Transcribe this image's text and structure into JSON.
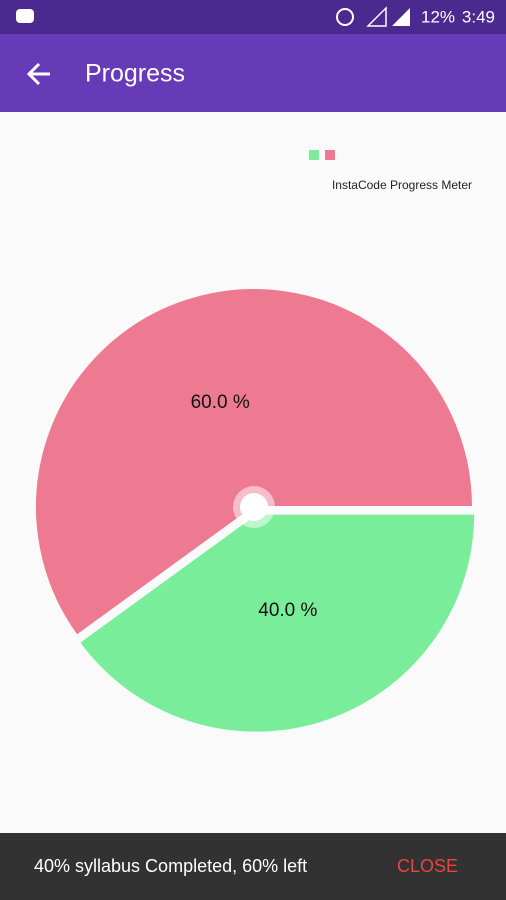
{
  "status_bar": {
    "battery": "12%",
    "time": "3:49"
  },
  "app_bar": {
    "title": "Progress"
  },
  "chart_data": {
    "type": "pie",
    "legend_label": "InstaCode Progress Meter",
    "categories": [
      null,
      null
    ],
    "values": [
      40,
      60
    ],
    "value_labels": [
      "40.0 %",
      "60.0 %"
    ],
    "colors": [
      "#7aed9b",
      "#ee7a92"
    ]
  },
  "snackbar": {
    "message": "40% syllabus Completed, 60% left",
    "action": "CLOSE"
  }
}
